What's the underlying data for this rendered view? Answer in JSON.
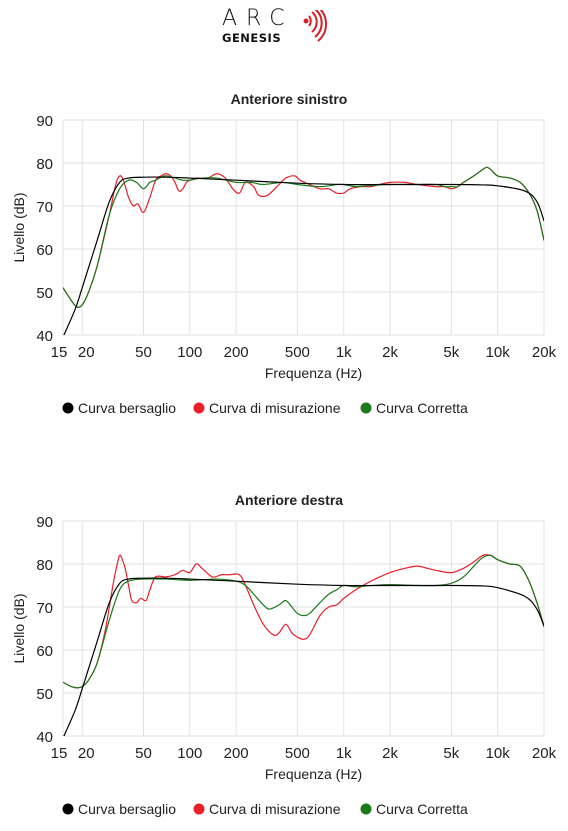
{
  "logo": {
    "word": "ARC",
    "sub": "GENESIS",
    "wave_color": "#d42027",
    "icon": "sound-waves-icon"
  },
  "colors": {
    "target": "#000000",
    "measured": "#e8202a",
    "corrected": "#1a7a1a",
    "grid": "#e2e2e2"
  },
  "legend": {
    "target": "Curva bersaglio",
    "measured": "Curva di misurazione",
    "corrected": "Curva Corretta"
  },
  "chart_data": [
    {
      "type": "line",
      "title": "Anteriore sinistro",
      "xlabel": "Frequenza (Hz)",
      "ylabel": "Livello (dB)",
      "x_scale": "log",
      "xlim": [
        15,
        20000
      ],
      "ylim": [
        40,
        90
      ],
      "x_ticks": [
        15,
        20,
        50,
        100,
        200,
        500,
        1000,
        2000,
        5000,
        10000,
        20000
      ],
      "x_tick_labels": [
        "15",
        "20",
        "50",
        "100",
        "200",
        "500",
        "1k",
        "2k",
        "5k",
        "10k",
        "20k"
      ],
      "y_ticks": [
        40,
        50,
        60,
        70,
        80,
        90
      ],
      "grid": true,
      "legend_position": "bottom",
      "series": [
        {
          "name": "Curva bersaglio",
          "color": "#000000",
          "points": [
            [
              15,
              39.5
            ],
            [
              18,
              46
            ],
            [
              20,
              51
            ],
            [
              25,
              62
            ],
            [
              30,
              71
            ],
            [
              35,
              75.5
            ],
            [
              40,
              76.5
            ],
            [
              50,
              76.7
            ],
            [
              70,
              76.7
            ],
            [
              100,
              76.5
            ],
            [
              200,
              76
            ],
            [
              500,
              75.3
            ],
            [
              1000,
              75
            ],
            [
              2000,
              75
            ],
            [
              5000,
              75
            ],
            [
              8000,
              74.9
            ],
            [
              10000,
              74.7
            ],
            [
              15000,
              73.5
            ],
            [
              18000,
              71
            ],
            [
              20000,
              66.5
            ]
          ]
        },
        {
          "name": "Curva di misurazione",
          "color": "#e8202a",
          "points": [
            [
              15,
              51
            ],
            [
              17,
              48
            ],
            [
              18.5,
              46.5
            ],
            [
              20,
              47
            ],
            [
              22,
              50
            ],
            [
              25,
              56
            ],
            [
              30,
              68
            ],
            [
              33,
              75
            ],
            [
              35,
              77
            ],
            [
              37,
              76
            ],
            [
              40,
              72
            ],
            [
              43,
              70
            ],
            [
              46,
              70.5
            ],
            [
              50,
              68.5
            ],
            [
              55,
              72
            ],
            [
              60,
              76
            ],
            [
              65,
              77
            ],
            [
              70,
              77.5
            ],
            [
              75,
              77
            ],
            [
              80,
              75.5
            ],
            [
              85,
              73.5
            ],
            [
              90,
              74
            ],
            [
              95,
              75.5
            ],
            [
              100,
              76
            ],
            [
              110,
              76.5
            ],
            [
              130,
              76.5
            ],
            [
              150,
              77.5
            ],
            [
              170,
              76.5
            ],
            [
              190,
              74
            ],
            [
              210,
              73
            ],
            [
              230,
              75.5
            ],
            [
              260,
              74.5
            ],
            [
              280,
              72.5
            ],
            [
              320,
              72.5
            ],
            [
              380,
              75
            ],
            [
              420,
              76.5
            ],
            [
              480,
              77
            ],
            [
              520,
              76
            ],
            [
              600,
              75
            ],
            [
              700,
              74
            ],
            [
              800,
              74
            ],
            [
              900,
              73
            ],
            [
              1000,
              73
            ],
            [
              1100,
              74
            ],
            [
              1300,
              74.5
            ],
            [
              1500,
              74.5
            ],
            [
              1700,
              75
            ],
            [
              2000,
              75.5
            ],
            [
              2500,
              75.5
            ],
            [
              3000,
              75
            ],
            [
              4000,
              74.5
            ],
            [
              4500,
              74.5
            ],
            [
              5000,
              74
            ],
            [
              5500,
              74.5
            ],
            [
              6000,
              75.5
            ],
            [
              7000,
              77
            ],
            [
              8000,
              78.5
            ],
            [
              8500,
              79
            ],
            [
              9000,
              78.5
            ],
            [
              10000,
              77
            ],
            [
              12000,
              76.5
            ],
            [
              14000,
              75.5
            ],
            [
              16000,
              73
            ],
            [
              18000,
              69
            ],
            [
              20000,
              62
            ]
          ]
        },
        {
          "name": "Curva Corretta",
          "color": "#1a7a1a",
          "points": [
            [
              15,
              51
            ],
            [
              17,
              48
            ],
            [
              18.5,
              46.5
            ],
            [
              20,
              47
            ],
            [
              22,
              50
            ],
            [
              25,
              56
            ],
            [
              30,
              68
            ],
            [
              35,
              74
            ],
            [
              40,
              76
            ],
            [
              45,
              75.5
            ],
            [
              50,
              74
            ],
            [
              55,
              75.5
            ],
            [
              60,
              76
            ],
            [
              65,
              76.7
            ],
            [
              70,
              77
            ],
            [
              80,
              76.5
            ],
            [
              90,
              76
            ],
            [
              100,
              76
            ],
            [
              120,
              76.5
            ],
            [
              150,
              76.5
            ],
            [
              200,
              75.5
            ],
            [
              250,
              75.5
            ],
            [
              300,
              75
            ],
            [
              400,
              75.5
            ],
            [
              500,
              75
            ],
            [
              700,
              74.5
            ],
            [
              900,
              75
            ],
            [
              1000,
              75
            ],
            [
              1200,
              74.5
            ],
            [
              1500,
              74.8
            ],
            [
              2000,
              75
            ],
            [
              3000,
              75
            ],
            [
              4000,
              75
            ],
            [
              4500,
              74.5
            ],
            [
              5000,
              74.5
            ],
            [
              5500,
              74.5
            ],
            [
              6000,
              75.5
            ],
            [
              7000,
              77
            ],
            [
              8000,
              78.5
            ],
            [
              8500,
              79
            ],
            [
              9000,
              78.5
            ],
            [
              10000,
              77
            ],
            [
              12000,
              76.5
            ],
            [
              14000,
              75.5
            ],
            [
              16000,
              73
            ],
            [
              18000,
              69
            ],
            [
              20000,
              62
            ]
          ]
        }
      ]
    },
    {
      "type": "line",
      "title": "Anteriore destra",
      "xlabel": "Frequenza (Hz)",
      "ylabel": "Livello (dB)",
      "x_scale": "log",
      "xlim": [
        15,
        20000
      ],
      "ylim": [
        40,
        90
      ],
      "x_ticks": [
        15,
        20,
        50,
        100,
        200,
        500,
        1000,
        2000,
        5000,
        10000,
        20000
      ],
      "x_tick_labels": [
        "15",
        "20",
        "50",
        "100",
        "200",
        "500",
        "1k",
        "2k",
        "5k",
        "10k",
        "20k"
      ],
      "y_ticks": [
        40,
        50,
        60,
        70,
        80,
        90
      ],
      "grid": true,
      "legend_position": "bottom",
      "series": [
        {
          "name": "Curva bersaglio",
          "color": "#000000",
          "points": [
            [
              15,
              39.5
            ],
            [
              18,
              46
            ],
            [
              20,
              51
            ],
            [
              25,
              62
            ],
            [
              30,
              71
            ],
            [
              35,
              75.5
            ],
            [
              40,
              76.5
            ],
            [
              50,
              76.7
            ],
            [
              70,
              76.7
            ],
            [
              100,
              76.5
            ],
            [
              200,
              76
            ],
            [
              500,
              75.3
            ],
            [
              1000,
              75
            ],
            [
              2000,
              75
            ],
            [
              5000,
              75
            ],
            [
              8000,
              74.9
            ],
            [
              10000,
              74.5
            ],
            [
              15000,
              72.5
            ],
            [
              18000,
              69.5
            ],
            [
              20000,
              65.5
            ]
          ]
        },
        {
          "name": "Curva di misurazione",
          "color": "#e8202a",
          "points": [
            [
              15,
              52.5
            ],
            [
              17,
              51.5
            ],
            [
              18.5,
              51.2
            ],
            [
              20,
              51.5
            ],
            [
              22,
              53
            ],
            [
              25,
              57
            ],
            [
              28,
              64
            ],
            [
              30,
              70
            ],
            [
              32,
              76
            ],
            [
              34,
              80.5
            ],
            [
              35,
              82
            ],
            [
              36,
              81.5
            ],
            [
              38,
              79
            ],
            [
              40,
              75
            ],
            [
              42,
              71.5
            ],
            [
              45,
              71
            ],
            [
              48,
              72
            ],
            [
              52,
              71.5
            ],
            [
              55,
              74
            ],
            [
              60,
              77
            ],
            [
              70,
              77
            ],
            [
              80,
              77.5
            ],
            [
              90,
              78.5
            ],
            [
              100,
              78
            ],
            [
              110,
              80
            ],
            [
              120,
              79
            ],
            [
              140,
              77
            ],
            [
              160,
              77.5
            ],
            [
              180,
              77.5
            ],
            [
              210,
              77.5
            ],
            [
              230,
              75
            ],
            [
              260,
              70.5
            ],
            [
              300,
              66
            ],
            [
              350,
              63.5
            ],
            [
              380,
              64
            ],
            [
              420,
              66
            ],
            [
              460,
              64
            ],
            [
              500,
              63
            ],
            [
              550,
              62.5
            ],
            [
              600,
              63.5
            ],
            [
              700,
              68
            ],
            [
              800,
              70
            ],
            [
              900,
              70.5
            ],
            [
              1000,
              72
            ],
            [
              1200,
              74
            ],
            [
              1500,
              76
            ],
            [
              2000,
              78
            ],
            [
              2500,
              79
            ],
            [
              3000,
              79.5
            ],
            [
              3500,
              79
            ],
            [
              4000,
              78.5
            ],
            [
              5000,
              78
            ],
            [
              6000,
              79
            ],
            [
              7000,
              80.5
            ],
            [
              8000,
              82
            ],
            [
              9000,
              82
            ],
            [
              10000,
              81
            ],
            [
              12000,
              80
            ],
            [
              14000,
              79.5
            ],
            [
              16000,
              76
            ],
            [
              18000,
              71
            ],
            [
              20000,
              65.5
            ]
          ]
        },
        {
          "name": "Curva Corretta",
          "color": "#1a7a1a",
          "points": [
            [
              15,
              52.5
            ],
            [
              17,
              51.5
            ],
            [
              18.5,
              51.2
            ],
            [
              20,
              51.5
            ],
            [
              22,
              53
            ],
            [
              25,
              57
            ],
            [
              30,
              67
            ],
            [
              35,
              74
            ],
            [
              40,
              76
            ],
            [
              50,
              76.5
            ],
            [
              70,
              76.5
            ],
            [
              100,
              76.2
            ],
            [
              150,
              76.5
            ],
            [
              200,
              76
            ],
            [
              230,
              75
            ],
            [
              260,
              73
            ],
            [
              300,
              70.5
            ],
            [
              330,
              69.5
            ],
            [
              380,
              70.5
            ],
            [
              420,
              71.5
            ],
            [
              460,
              70
            ],
            [
              500,
              68.5
            ],
            [
              550,
              68
            ],
            [
              600,
              68.5
            ],
            [
              700,
              71
            ],
            [
              800,
              73
            ],
            [
              900,
              74
            ],
            [
              1000,
              75
            ],
            [
              1200,
              74.7
            ],
            [
              1500,
              75
            ],
            [
              2000,
              75.2
            ],
            [
              3000,
              75
            ],
            [
              4000,
              75
            ],
            [
              5000,
              75.5
            ],
            [
              6000,
              77
            ],
            [
              7000,
              79.5
            ],
            [
              8000,
              81.5
            ],
            [
              9000,
              82
            ],
            [
              10000,
              81
            ],
            [
              12000,
              80
            ],
            [
              14000,
              79.5
            ],
            [
              16000,
              76
            ],
            [
              18000,
              71
            ],
            [
              20000,
              65.5
            ]
          ]
        }
      ]
    }
  ]
}
